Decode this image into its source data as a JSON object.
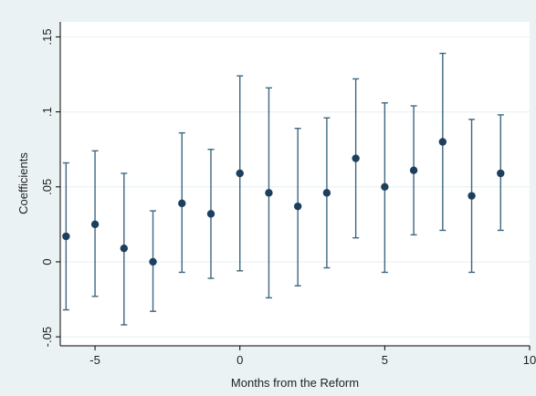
{
  "chart_data": {
    "type": "scatter",
    "title": "",
    "xlabel": "Months from the Reform",
    "ylabel": "Coefficients",
    "xlim": [
      -6.2,
      10
    ],
    "ylim": [
      -0.056,
      0.16
    ],
    "x_ticks": [
      -5,
      0,
      5,
      10
    ],
    "x_tick_labels": [
      "-5",
      "0",
      "5",
      "10"
    ],
    "y_ticks": [
      -0.05,
      0,
      0.05,
      0.1,
      0.15
    ],
    "y_tick_labels": [
      "-.05",
      "0",
      ".05",
      ".1",
      ".15"
    ],
    "grid": true,
    "colors": {
      "background": "#eaf2f3",
      "plot_area": "#ffffff",
      "grid": "#eaf2f3",
      "marker": "#1d3f5e",
      "error_bar": "#3f6780"
    },
    "points": [
      {
        "x": -6,
        "y": 0.017,
        "lo": -0.032,
        "hi": 0.066
      },
      {
        "x": -5,
        "y": 0.025,
        "lo": -0.023,
        "hi": 0.074
      },
      {
        "x": -4,
        "y": 0.009,
        "lo": -0.042,
        "hi": 0.059
      },
      {
        "x": -3,
        "y": 0.0,
        "lo": -0.033,
        "hi": 0.034
      },
      {
        "x": -2,
        "y": 0.039,
        "lo": -0.007,
        "hi": 0.086
      },
      {
        "x": -1,
        "y": 0.032,
        "lo": -0.011,
        "hi": 0.075
      },
      {
        "x": 0,
        "y": 0.059,
        "lo": -0.006,
        "hi": 0.124
      },
      {
        "x": 1,
        "y": 0.046,
        "lo": -0.024,
        "hi": 0.116
      },
      {
        "x": 2,
        "y": 0.037,
        "lo": -0.016,
        "hi": 0.089
      },
      {
        "x": 3,
        "y": 0.046,
        "lo": -0.004,
        "hi": 0.096
      },
      {
        "x": 4,
        "y": 0.069,
        "lo": 0.016,
        "hi": 0.122
      },
      {
        "x": 5,
        "y": 0.05,
        "lo": -0.007,
        "hi": 0.106
      },
      {
        "x": 6,
        "y": 0.061,
        "lo": 0.018,
        "hi": 0.104
      },
      {
        "x": 7,
        "y": 0.08,
        "lo": 0.021,
        "hi": 0.139
      },
      {
        "x": 8,
        "y": 0.044,
        "lo": -0.007,
        "hi": 0.095
      },
      {
        "x": 9,
        "y": 0.059,
        "lo": 0.021,
        "hi": 0.098
      }
    ]
  }
}
